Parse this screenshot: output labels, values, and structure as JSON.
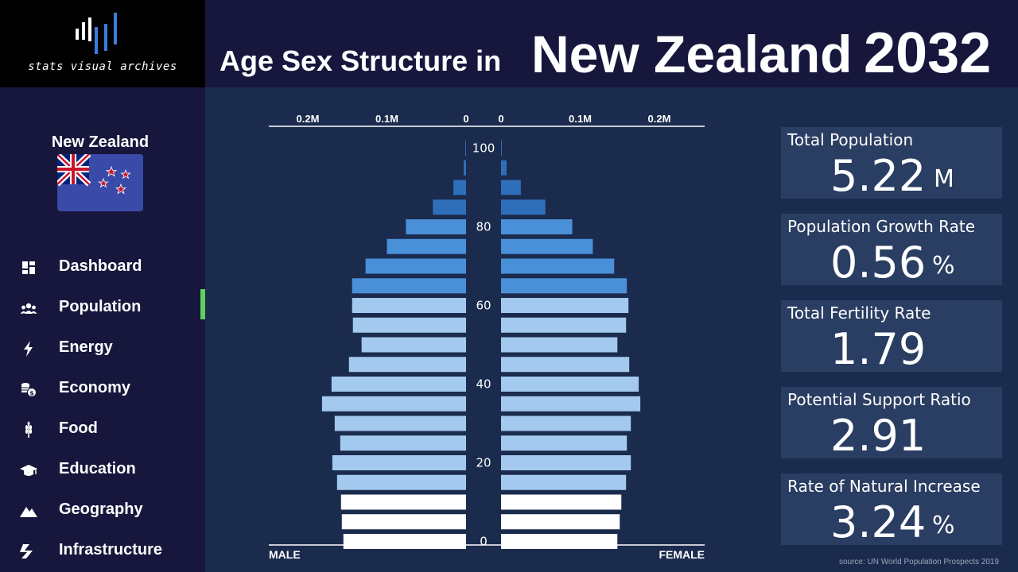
{
  "brand": {
    "text": "stats visual archives"
  },
  "header": {
    "title_prefix": "Age Sex Structure in",
    "title_country": "New Zealand",
    "title_year": "2032"
  },
  "sidebar": {
    "country": "New Zealand",
    "items": [
      {
        "label": "Dashboard",
        "icon": "dashboard-icon"
      },
      {
        "label": "Population",
        "icon": "people-icon",
        "active": true
      },
      {
        "label": "Energy",
        "icon": "lightning-icon"
      },
      {
        "label": "Economy",
        "icon": "coins-icon"
      },
      {
        "label": "Food",
        "icon": "wheat-icon"
      },
      {
        "label": "Education",
        "icon": "graduation-cap-icon"
      },
      {
        "label": "Geography",
        "icon": "mountain-icon"
      },
      {
        "label": "Infrastructure",
        "icon": "road-icon"
      }
    ],
    "active_color": "#5ed05e"
  },
  "stats": [
    {
      "label": "Total Population",
      "value": "5.22",
      "unit": "M"
    },
    {
      "label": "Population Growth Rate",
      "value": "0.56",
      "unit": "%"
    },
    {
      "label": "Total Fertility Rate",
      "value": "1.79",
      "unit": ""
    },
    {
      "label": "Potential Support Ratio",
      "value": "2.91",
      "unit": ""
    },
    {
      "label": "Rate of Natural Increase",
      "value": "3.24",
      "unit": "%"
    }
  ],
  "source": "source: UN World Population Prospects 2019",
  "chart_data": {
    "type": "bar",
    "subtype": "population-pyramid",
    "left_label": "MALE",
    "right_label": "FEMALE",
    "x_ticks_left": [
      "0.2M",
      "0.1M",
      "0"
    ],
    "x_ticks_right": [
      "0",
      "0.1M",
      "0.2M"
    ],
    "x_tick_values": [
      0.2,
      0.1,
      0
    ],
    "xlim_millions": [
      0,
      0.22
    ],
    "y_ticks": [
      "100",
      "80",
      "60",
      "40",
      "20",
      "0"
    ],
    "age_groups": [
      "0-4",
      "5-9",
      "10-14",
      "15-19",
      "20-24",
      "25-29",
      "30-34",
      "35-39",
      "40-44",
      "45-49",
      "50-54",
      "55-59",
      "60-64",
      "65-69",
      "70-74",
      "75-79",
      "80-84",
      "85-89",
      "90-94",
      "95-99",
      "100+"
    ],
    "male_millions": [
      0.155,
      0.157,
      0.158,
      0.163,
      0.169,
      0.159,
      0.166,
      0.182,
      0.17,
      0.148,
      0.132,
      0.143,
      0.144,
      0.144,
      0.127,
      0.1,
      0.076,
      0.042,
      0.016,
      0.003,
      0.0005
    ],
    "female_millions": [
      0.147,
      0.15,
      0.152,
      0.158,
      0.164,
      0.159,
      0.164,
      0.176,
      0.174,
      0.162,
      0.147,
      0.158,
      0.161,
      0.159,
      0.143,
      0.116,
      0.09,
      0.056,
      0.025,
      0.007,
      0.001
    ],
    "colors": {
      "young": "#ffffff",
      "working": "#a3c9ee",
      "old": "#4a90d9",
      "oldest": "#2f6eb8"
    }
  }
}
